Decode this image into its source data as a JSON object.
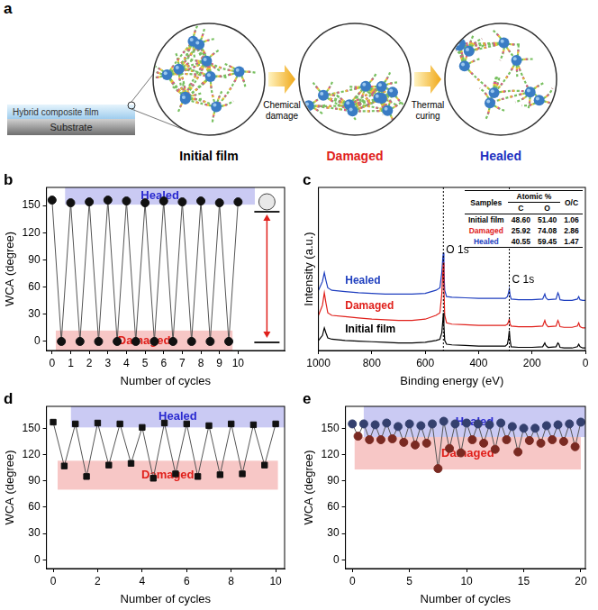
{
  "diagram": {
    "panel": "a",
    "film": "Hybrid composite film",
    "substrate": "Substrate",
    "stages": [
      {
        "label": "Initial film",
        "color": "#000000"
      },
      {
        "label": "Damaged",
        "color": "#e0201b"
      },
      {
        "label": "Healed",
        "color": "#2030c0"
      }
    ],
    "steps": [
      "Chemical damage",
      "Thermal curing"
    ]
  },
  "chart_data": [
    {
      "panel": "b",
      "type": "line",
      "x_label": "Number of cycles",
      "y_label": "WCA (degree)",
      "x": [
        0,
        0.5,
        1,
        1.5,
        2,
        2.5,
        3,
        3.5,
        4,
        4.5,
        5,
        5.5,
        6,
        6.5,
        7,
        7.5,
        8,
        8.5,
        9,
        9.5,
        10
      ],
      "values": [
        156,
        0,
        153,
        0,
        154,
        0,
        156,
        0,
        155,
        0,
        153,
        0,
        155,
        0,
        154,
        0,
        155,
        0,
        153,
        0,
        154
      ],
      "color": "#111111",
      "marker": "circle",
      "xlim": [
        -0.3,
        12.5
      ],
      "ylim": [
        -10,
        170
      ],
      "xticks": [
        0,
        1,
        2,
        3,
        4,
        5,
        6,
        7,
        8,
        9,
        10
      ],
      "yticks": [
        0,
        30,
        60,
        90,
        120,
        150
      ],
      "grid": false,
      "bands": [
        {
          "label": "Healed",
          "color": "#2a2ad0",
          "x": [
            0.7,
            10.9
          ],
          "y": [
            151,
            170
          ]
        },
        {
          "label": "Damaged",
          "color": "#e0201b",
          "x": [
            0.2,
            9.7
          ],
          "y": [
            -10,
            12
          ]
        }
      ]
    },
    {
      "panel": "c",
      "type": "line",
      "x_label": "Binding energy (eV)",
      "y_label": "Intensity (a.u.)",
      "x": [
        1000,
        985,
        978,
        972,
        965,
        950,
        900,
        850,
        800,
        750,
        700,
        650,
        600,
        560,
        545,
        538,
        534,
        532,
        530,
        527,
        520,
        500,
        450,
        400,
        350,
        300,
        292,
        288,
        285,
        282,
        278,
        250,
        200,
        160,
        152,
        148,
        140,
        110,
        103,
        99,
        95,
        80,
        50,
        30,
        25,
        20,
        10,
        0
      ],
      "series": [
        {
          "name": "Initial film",
          "color": "#000000",
          "values": [
            8,
            12,
            18,
            14,
            10,
            9,
            8,
            7.5,
            7,
            6.5,
            6,
            6,
            6.5,
            8,
            9,
            14,
            24,
            30,
            20,
            8,
            5,
            4.5,
            4,
            3.5,
            3.5,
            3.5,
            5,
            10,
            16,
            8,
            3,
            2.5,
            2.5,
            3,
            6,
            4,
            2.5,
            3,
            6,
            5,
            2.5,
            2,
            2,
            3,
            5,
            3,
            2,
            2
          ]
        },
        {
          "name": "Damaged",
          "color": "#e0201b",
          "values": [
            28,
            36,
            46,
            38,
            30,
            28,
            27,
            26,
            25,
            24.5,
            24,
            24,
            25,
            28,
            30,
            45,
            62,
            70,
            50,
            28,
            22,
            21,
            20.5,
            20,
            20,
            20,
            21,
            23,
            25,
            21,
            19.5,
            19,
            19,
            19.5,
            24,
            21,
            19,
            19.5,
            24,
            22,
            19,
            18.5,
            18.5,
            19.5,
            22,
            19,
            18,
            18
          ]
        },
        {
          "name": "Healed",
          "color": "#1f3fbf",
          "values": [
            48,
            55,
            62,
            56,
            50,
            48,
            47,
            46,
            45.5,
            45,
            45,
            45,
            45.5,
            48,
            50,
            62,
            74,
            78,
            64,
            48,
            43,
            42.5,
            42,
            41.5,
            41.5,
            41.5,
            43,
            46,
            49,
            44,
            41,
            40.5,
            40.5,
            41,
            45,
            42,
            40.5,
            41,
            46,
            44,
            40.5,
            40,
            40,
            41,
            43,
            40.5,
            40,
            40
          ]
        }
      ],
      "xlim": [
        1000,
        0
      ],
      "ylim": [
        0,
        130
      ],
      "xticks": [
        1000,
        800,
        600,
        400,
        200,
        0
      ],
      "tick_labels": "x",
      "grid": false,
      "annotations": [
        {
          "text": "O 1s",
          "x": 532
        },
        {
          "text": "C 1s",
          "x": 285
        }
      ],
      "table": {
        "columns": [
          "Samples",
          "Atomic %",
          "O/C"
        ],
        "subcolumns": [
          "C",
          "O"
        ],
        "rows": [
          [
            "Initial film",
            "48.60",
            "51.40",
            "1.06"
          ],
          [
            "Damaged",
            "25.92",
            "74.08",
            "2.86"
          ],
          [
            "Healed",
            "40.55",
            "59.45",
            "1.47"
          ]
        ]
      }
    },
    {
      "panel": "d",
      "type": "line",
      "x_label": "Number of cycles",
      "y_label": "WCA (degree)",
      "x": [
        0,
        0.5,
        1,
        1.5,
        2,
        2.5,
        3,
        3.5,
        4,
        4.5,
        5,
        5.5,
        6,
        6.5,
        7,
        7.5,
        8,
        8.5,
        9,
        9.5,
        10
      ],
      "values": [
        157,
        107,
        155,
        95,
        156,
        108,
        155,
        110,
        151,
        93,
        156,
        98,
        155,
        95,
        153,
        97,
        155,
        98,
        154,
        108,
        155
      ],
      "color": "#111111",
      "marker": "square",
      "xlim": [
        -0.3,
        10.4
      ],
      "ylim": [
        -10,
        175
      ],
      "xticks": [
        0,
        2,
        4,
        6,
        8,
        10
      ],
      "yticks": [
        0,
        30,
        60,
        90,
        120,
        150
      ],
      "grid": false,
      "bands": [
        {
          "label": "Healed",
          "color": "#2a2ad0",
          "x": [
            0.8,
            10.4
          ],
          "y": [
            151,
            175
          ]
        },
        {
          "label": "Damaged",
          "color": "#e0201b",
          "x": [
            0.2,
            10.1
          ],
          "y": [
            80,
            113
          ]
        }
      ]
    },
    {
      "panel": "e",
      "type": "line",
      "x_label": "Number of cycles",
      "y_label": "WCA (degree)",
      "x": [
        0,
        0.5,
        1,
        1.5,
        2,
        2.5,
        3,
        3.5,
        4,
        4.5,
        5,
        5.5,
        6,
        6.5,
        7,
        7.5,
        8,
        8.5,
        9,
        9.5,
        10,
        10.5,
        11,
        11.5,
        12,
        12.5,
        13,
        13.5,
        14,
        14.5,
        15,
        15.5,
        16,
        16.5,
        17,
        17.5,
        18,
        18.5,
        19,
        19.5,
        20
      ],
      "values": [
        155,
        141,
        155,
        137,
        154,
        137,
        156,
        138,
        152,
        134,
        155,
        131,
        153,
        133,
        155,
        104,
        158,
        127,
        155,
        122,
        156,
        137,
        155,
        133,
        154,
        126,
        156,
        137,
        152,
        123,
        150,
        136,
        150,
        133,
        153,
        137,
        154,
        135,
        155,
        129,
        157
      ],
      "colors": [
        "#34406e",
        "#7a2a22",
        "#34406e",
        "#7a2a22",
        "#34406e",
        "#7a2a22",
        "#34406e",
        "#7a2a22",
        "#34406e",
        "#7a2a22",
        "#34406e",
        "#7a2a22",
        "#34406e",
        "#7a2a22",
        "#34406e",
        "#7a2a22",
        "#34406e",
        "#7a2a22",
        "#34406e",
        "#7a2a22",
        "#34406e",
        "#7a2a22",
        "#34406e",
        "#7a2a22",
        "#34406e",
        "#7a2a22",
        "#34406e",
        "#7a2a22",
        "#34406e",
        "#7a2a22",
        "#34406e",
        "#7a2a22",
        "#34406e",
        "#7a2a22",
        "#34406e",
        "#7a2a22",
        "#34406e",
        "#7a2a22",
        "#34406e",
        "#7a2a22",
        "#34406e"
      ],
      "marker": "circle",
      "xlim": [
        -0.6,
        20.4
      ],
      "ylim": [
        -10,
        175
      ],
      "xticks": [
        0,
        5,
        10,
        15,
        20
      ],
      "yticks": [
        0,
        30,
        60,
        90,
        120,
        150
      ],
      "grid": false,
      "bands": [
        {
          "label": "Healed",
          "color": "#2a2ad0",
          "x": [
            1,
            20.4
          ],
          "y": [
            140,
            175
          ]
        },
        {
          "label": "Damaged",
          "color": "#e0201b",
          "x": [
            0.2,
            20
          ],
          "y": [
            103,
            140
          ]
        }
      ]
    }
  ]
}
